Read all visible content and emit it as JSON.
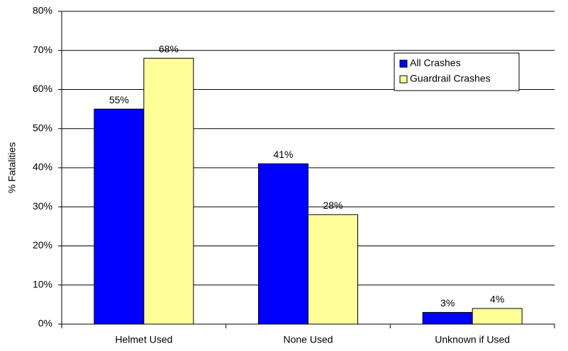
{
  "chart_data": {
    "type": "bar",
    "categories": [
      "Helmet Used",
      "None Used",
      "Unknown if Used"
    ],
    "y_label": "% Fatalities",
    "series": [
      {
        "name": "All Crashes",
        "color": "#0000ff",
        "values": [
          55,
          41,
          3
        ],
        "value_labels": [
          "55%",
          "41%",
          "3%"
        ]
      },
      {
        "name": "Guardrail Crashes",
        "color": "#ffff99",
        "values": [
          68,
          28,
          4
        ],
        "value_labels": [
          "68%",
          "28%",
          "4%"
        ]
      }
    ],
    "ylim": [
      0,
      80
    ],
    "yticks": [
      {
        "value": 0,
        "label": "0%"
      },
      {
        "value": 10,
        "label": "10%"
      },
      {
        "value": 20,
        "label": "20%"
      },
      {
        "value": 30,
        "label": "30%"
      },
      {
        "value": 40,
        "label": "40%"
      },
      {
        "value": 50,
        "label": "50%"
      },
      {
        "value": 60,
        "label": "60%"
      },
      {
        "value": 70,
        "label": "70%"
      },
      {
        "value": 80,
        "label": "80%"
      }
    ],
    "grid": true,
    "legend": "upper-right"
  }
}
